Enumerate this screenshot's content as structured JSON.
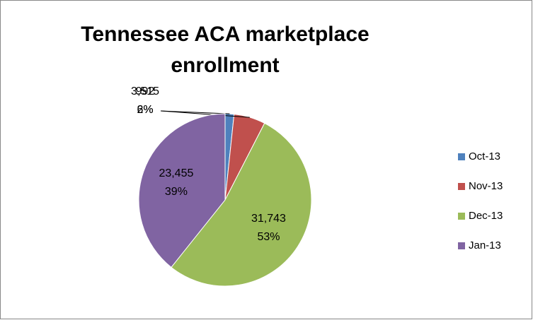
{
  "chart_data": {
    "type": "pie",
    "title": "Tennessee ACA marketplace enrollment",
    "categories": [
      "Oct-13",
      "Nov-13",
      "Dec-13",
      "Jan-13"
    ],
    "values": [
      992,
      3515,
      31743,
      23455
    ],
    "value_labels": [
      "992",
      "3,515",
      "31,743",
      "23,455"
    ],
    "percent_labels": [
      "2%",
      "6%",
      "53%",
      "39%"
    ],
    "colors": [
      "#4f81bd",
      "#c0504d",
      "#9bbb59",
      "#8064a2"
    ],
    "legend": "right"
  }
}
